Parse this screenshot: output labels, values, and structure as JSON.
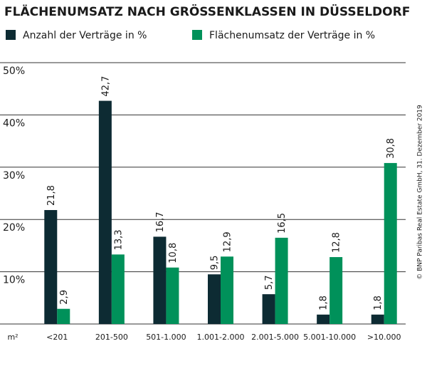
{
  "chart_data": {
    "type": "bar",
    "title": "FLÄCHENUMSATZ NACH GRÖSSENKLASSEN IN DÜSSELDORF",
    "x_label": "m²",
    "categories": [
      "<201",
      "201-500",
      "501-1.000",
      "1.001-2.000",
      "2.001-5.000",
      "5.001-10.000",
      ">10.000"
    ],
    "series": [
      {
        "name": "Anzahl der Verträge in %",
        "color": "#0d2b33",
        "values": [
          21.8,
          42.7,
          16.7,
          9.5,
          5.7,
          1.8,
          1.8
        ],
        "value_labels": [
          "21,8",
          "42,7",
          "16,7",
          "9,5",
          "5,7",
          "1,8",
          "1,8"
        ]
      },
      {
        "name": "Flächenumsatz der Verträge in %",
        "color": "#00915a",
        "values": [
          2.9,
          13.3,
          10.8,
          12.9,
          16.5,
          12.8,
          30.8
        ],
        "value_labels": [
          "2,9",
          "13,3",
          "10,8",
          "12,9",
          "16,5",
          "12,8",
          "30,8"
        ]
      }
    ],
    "ylim": [
      0,
      50
    ],
    "yticks": [
      {
        "value": 10,
        "label": "10%"
      },
      {
        "value": 20,
        "label": "20%"
      },
      {
        "value": 30,
        "label": "30%"
      },
      {
        "value": 40,
        "label": "40%"
      },
      {
        "value": 50,
        "label": "50%"
      }
    ],
    "grid": true,
    "source": "© BNP Paribas Real Estate GmbH, 31. Dezember 2019"
  }
}
